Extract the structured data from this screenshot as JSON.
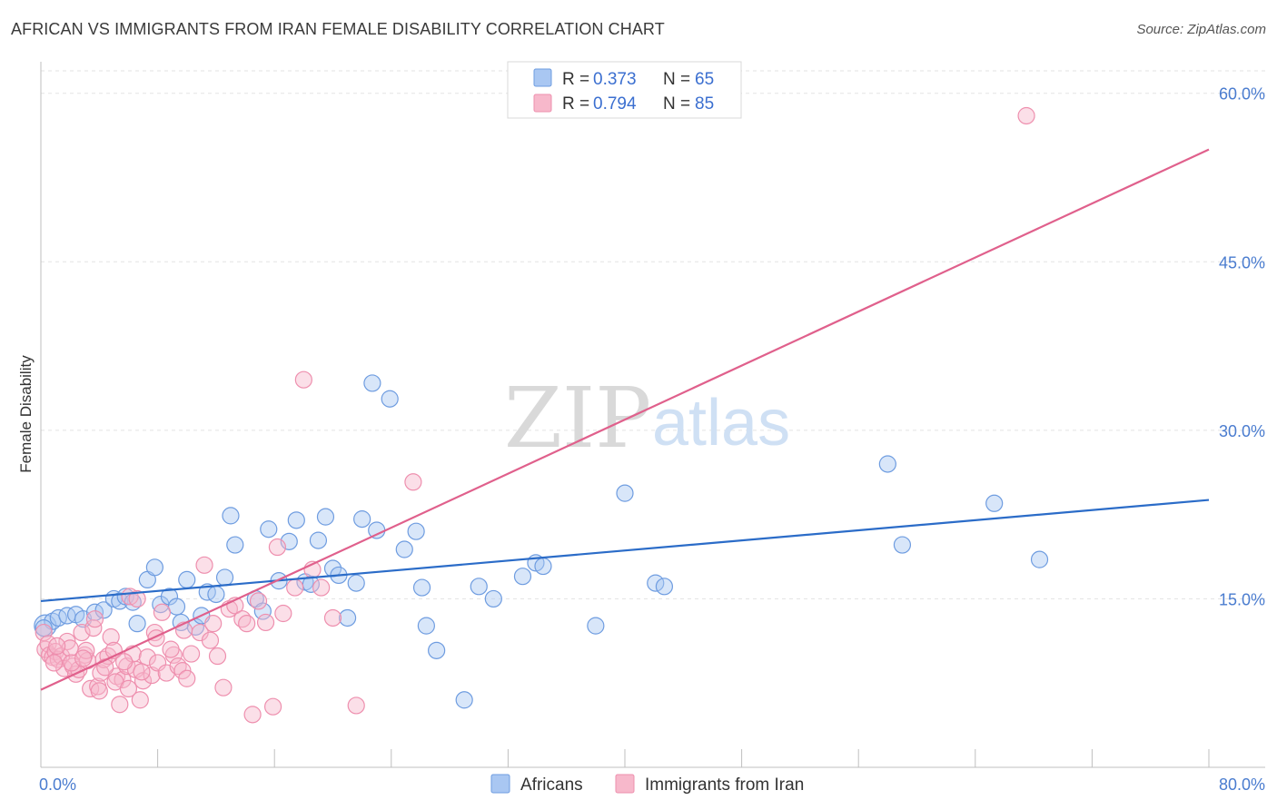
{
  "title": "AFRICAN VS IMMIGRANTS FROM IRAN FEMALE DISABILITY CORRELATION CHART",
  "source": "Source: ZipAtlas.com",
  "watermark": {
    "zip": "ZIP",
    "atlas": "atlas"
  },
  "legend_top": [
    {
      "r_label": "R = ",
      "r_value": "0.373",
      "n_label": "N = ",
      "n_value": "65",
      "color": "#a9c7f2"
    },
    {
      "r_label": "R = ",
      "r_value": "0.794",
      "n_label": "N = ",
      "n_value": "85",
      "color": "#f7b8cb"
    }
  ],
  "legend_bottom": [
    {
      "label": "Africans",
      "color": "#a9c7f2"
    },
    {
      "label": "Immigrants from Iran",
      "color": "#f7b8cb"
    }
  ],
  "chart_data": {
    "type": "scatter",
    "ylabel": "Female Disability",
    "xlim": [
      0,
      80
    ],
    "ylim": [
      0,
      62
    ],
    "x_tick_labels": [
      {
        "value": 0,
        "label": "0.0%"
      },
      {
        "value": 80,
        "label": "80.0%"
      }
    ],
    "y_tick_labels": [
      {
        "value": 15,
        "label": "15.0%"
      },
      {
        "value": 30,
        "label": "30.0%"
      },
      {
        "value": 45,
        "label": "45.0%"
      },
      {
        "value": 60,
        "label": "60.0%"
      }
    ],
    "series": [
      {
        "name": "Africans",
        "color": "#a9c7f2",
        "stroke": "#6e9ce0",
        "line_color": "#2b6cc8",
        "trend": {
          "x": [
            0,
            80
          ],
          "y": [
            14.8,
            23.8
          ]
        },
        "points": [
          [
            0.3,
            12.6
          ],
          [
            0.8,
            13.0
          ],
          [
            1.2,
            13.3
          ],
          [
            1.8,
            13.5
          ],
          [
            2.4,
            13.6
          ],
          [
            2.9,
            13.2
          ],
          [
            3.7,
            13.8
          ],
          [
            4.3,
            14.0
          ],
          [
            5.0,
            15.0
          ],
          [
            5.4,
            14.8
          ],
          [
            5.8,
            15.2
          ],
          [
            6.3,
            14.7
          ],
          [
            6.6,
            12.8
          ],
          [
            7.3,
            16.7
          ],
          [
            7.8,
            17.8
          ],
          [
            8.2,
            14.5
          ],
          [
            8.8,
            15.2
          ],
          [
            9.3,
            14.3
          ],
          [
            10.0,
            16.7
          ],
          [
            9.6,
            12.9
          ],
          [
            10.6,
            12.5
          ],
          [
            11.0,
            13.5
          ],
          [
            11.4,
            15.6
          ],
          [
            12.0,
            15.4
          ],
          [
            12.6,
            16.9
          ],
          [
            13.0,
            22.4
          ],
          [
            13.3,
            19.8
          ],
          [
            14.7,
            15.0
          ],
          [
            15.2,
            13.9
          ],
          [
            15.6,
            21.2
          ],
          [
            16.3,
            16.6
          ],
          [
            17.0,
            20.1
          ],
          [
            17.5,
            22.0
          ],
          [
            18.1,
            16.5
          ],
          [
            18.5,
            16.3
          ],
          [
            19.0,
            20.2
          ],
          [
            19.5,
            22.3
          ],
          [
            20.0,
            17.7
          ],
          [
            20.4,
            17.1
          ],
          [
            21.0,
            13.3
          ],
          [
            21.6,
            16.4
          ],
          [
            22.0,
            22.1
          ],
          [
            22.7,
            34.2
          ],
          [
            23.0,
            21.1
          ],
          [
            23.9,
            32.8
          ],
          [
            24.9,
            19.4
          ],
          [
            25.7,
            21.0
          ],
          [
            26.1,
            16.0
          ],
          [
            26.4,
            12.6
          ],
          [
            27.1,
            10.4
          ],
          [
            29.0,
            6.0
          ],
          [
            30.0,
            16.1
          ],
          [
            31.0,
            15.0
          ],
          [
            33.0,
            17.0
          ],
          [
            33.9,
            18.2
          ],
          [
            34.4,
            17.9
          ],
          [
            38.0,
            12.6
          ],
          [
            40.0,
            24.4
          ],
          [
            42.1,
            16.4
          ],
          [
            42.7,
            16.1
          ],
          [
            58.0,
            27.0
          ],
          [
            59.0,
            19.8
          ],
          [
            65.3,
            23.5
          ],
          [
            68.4,
            18.5
          ],
          [
            0.2,
            12.4
          ]
        ]
      },
      {
        "name": "Immigrants from Iran",
        "color": "#f7b8cb",
        "stroke": "#ee8fae",
        "line_color": "#e0608c",
        "trend": {
          "x": [
            0,
            80
          ],
          "y": [
            6.9,
            55.0
          ]
        },
        "points": [
          [
            0.2,
            12.0
          ],
          [
            0.3,
            10.5
          ],
          [
            0.5,
            11.0
          ],
          [
            0.6,
            10.0
          ],
          [
            0.8,
            9.8
          ],
          [
            1.0,
            10.3
          ],
          [
            1.2,
            9.6
          ],
          [
            1.4,
            9.9
          ],
          [
            1.6,
            8.8
          ],
          [
            1.8,
            11.2
          ],
          [
            2.0,
            10.6
          ],
          [
            2.2,
            9.0
          ],
          [
            2.4,
            8.3
          ],
          [
            2.6,
            8.7
          ],
          [
            2.8,
            12.0
          ],
          [
            3.0,
            10.0
          ],
          [
            3.2,
            9.5
          ],
          [
            3.4,
            7.0
          ],
          [
            3.6,
            12.4
          ],
          [
            3.7,
            13.2
          ],
          [
            3.9,
            7.2
          ],
          [
            4.1,
            8.4
          ],
          [
            4.3,
            9.6
          ],
          [
            4.6,
            9.9
          ],
          [
            4.8,
            11.6
          ],
          [
            5.0,
            10.4
          ],
          [
            5.2,
            8.1
          ],
          [
            5.4,
            5.6
          ],
          [
            5.6,
            7.8
          ],
          [
            5.9,
            9.0
          ],
          [
            6.1,
            15.2
          ],
          [
            6.3,
            10.1
          ],
          [
            6.5,
            8.7
          ],
          [
            6.6,
            15.0
          ],
          [
            6.8,
            6.0
          ],
          [
            7.0,
            7.7
          ],
          [
            7.3,
            9.8
          ],
          [
            7.6,
            8.2
          ],
          [
            7.8,
            12.0
          ],
          [
            8.0,
            9.3
          ],
          [
            8.3,
            13.8
          ],
          [
            8.6,
            8.4
          ],
          [
            9.1,
            10.0
          ],
          [
            9.4,
            9.0
          ],
          [
            9.7,
            8.6
          ],
          [
            10.0,
            7.9
          ],
          [
            10.3,
            10.1
          ],
          [
            10.9,
            12.0
          ],
          [
            11.2,
            18.0
          ],
          [
            11.6,
            11.3
          ],
          [
            12.1,
            9.9
          ],
          [
            12.5,
            7.1
          ],
          [
            12.9,
            14.1
          ],
          [
            13.3,
            14.4
          ],
          [
            13.8,
            13.2
          ],
          [
            14.1,
            12.8
          ],
          [
            14.5,
            4.7
          ],
          [
            14.9,
            14.8
          ],
          [
            15.4,
            12.9
          ],
          [
            15.9,
            5.4
          ],
          [
            16.2,
            19.6
          ],
          [
            16.6,
            13.7
          ],
          [
            17.4,
            16.0
          ],
          [
            18.0,
            34.5
          ],
          [
            18.6,
            17.6
          ],
          [
            19.2,
            16.0
          ],
          [
            20.0,
            13.3
          ],
          [
            21.6,
            5.5
          ],
          [
            25.5,
            25.4
          ],
          [
            67.5,
            58.0
          ],
          [
            4.0,
            6.8
          ],
          [
            2.1,
            9.3
          ],
          [
            3.1,
            10.4
          ],
          [
            5.7,
            9.4
          ],
          [
            6.9,
            8.5
          ],
          [
            7.9,
            11.5
          ],
          [
            9.8,
            12.2
          ],
          [
            11.8,
            12.8
          ],
          [
            1.1,
            10.8
          ],
          [
            2.9,
            9.7
          ],
          [
            4.4,
            8.9
          ],
          [
            5.1,
            7.6
          ],
          [
            6.0,
            7.0
          ],
          [
            8.9,
            10.5
          ],
          [
            0.9,
            9.3
          ]
        ]
      }
    ]
  }
}
